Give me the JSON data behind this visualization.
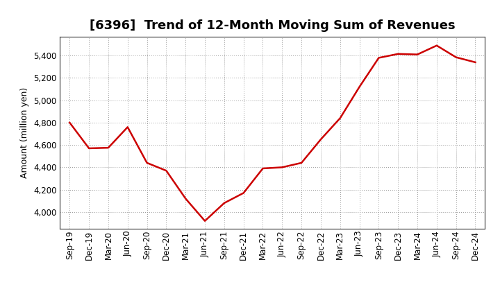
{
  "title": "[6396]  Trend of 12-Month Moving Sum of Revenues",
  "ylabel": "Amount (million yen)",
  "line_color": "#cc0000",
  "background_color": "#ffffff",
  "plot_bg_color": "#ffffff",
  "grid_color": "#999999",
  "x_labels": [
    "Sep-19",
    "Dec-19",
    "Mar-20",
    "Jun-20",
    "Sep-20",
    "Dec-20",
    "Mar-21",
    "Jun-21",
    "Sep-21",
    "Dec-21",
    "Mar-22",
    "Jun-22",
    "Sep-22",
    "Dec-22",
    "Mar-23",
    "Jun-23",
    "Sep-23",
    "Dec-23",
    "Mar-24",
    "Jun-24",
    "Sep-24",
    "Dec-24"
  ],
  "values": [
    4800,
    4570,
    4575,
    4760,
    4440,
    4370,
    4120,
    3920,
    4080,
    4170,
    4390,
    4400,
    4440,
    4650,
    4840,
    5120,
    5380,
    5415,
    5410,
    5490,
    5385,
    5340
  ],
  "ylim": [
    3850,
    5570
  ],
  "yticks": [
    4000,
    4200,
    4400,
    4600,
    4800,
    5000,
    5200,
    5400
  ],
  "line_width": 1.8,
  "title_fontsize": 13,
  "tick_fontsize": 8.5,
  "ylabel_fontsize": 9
}
